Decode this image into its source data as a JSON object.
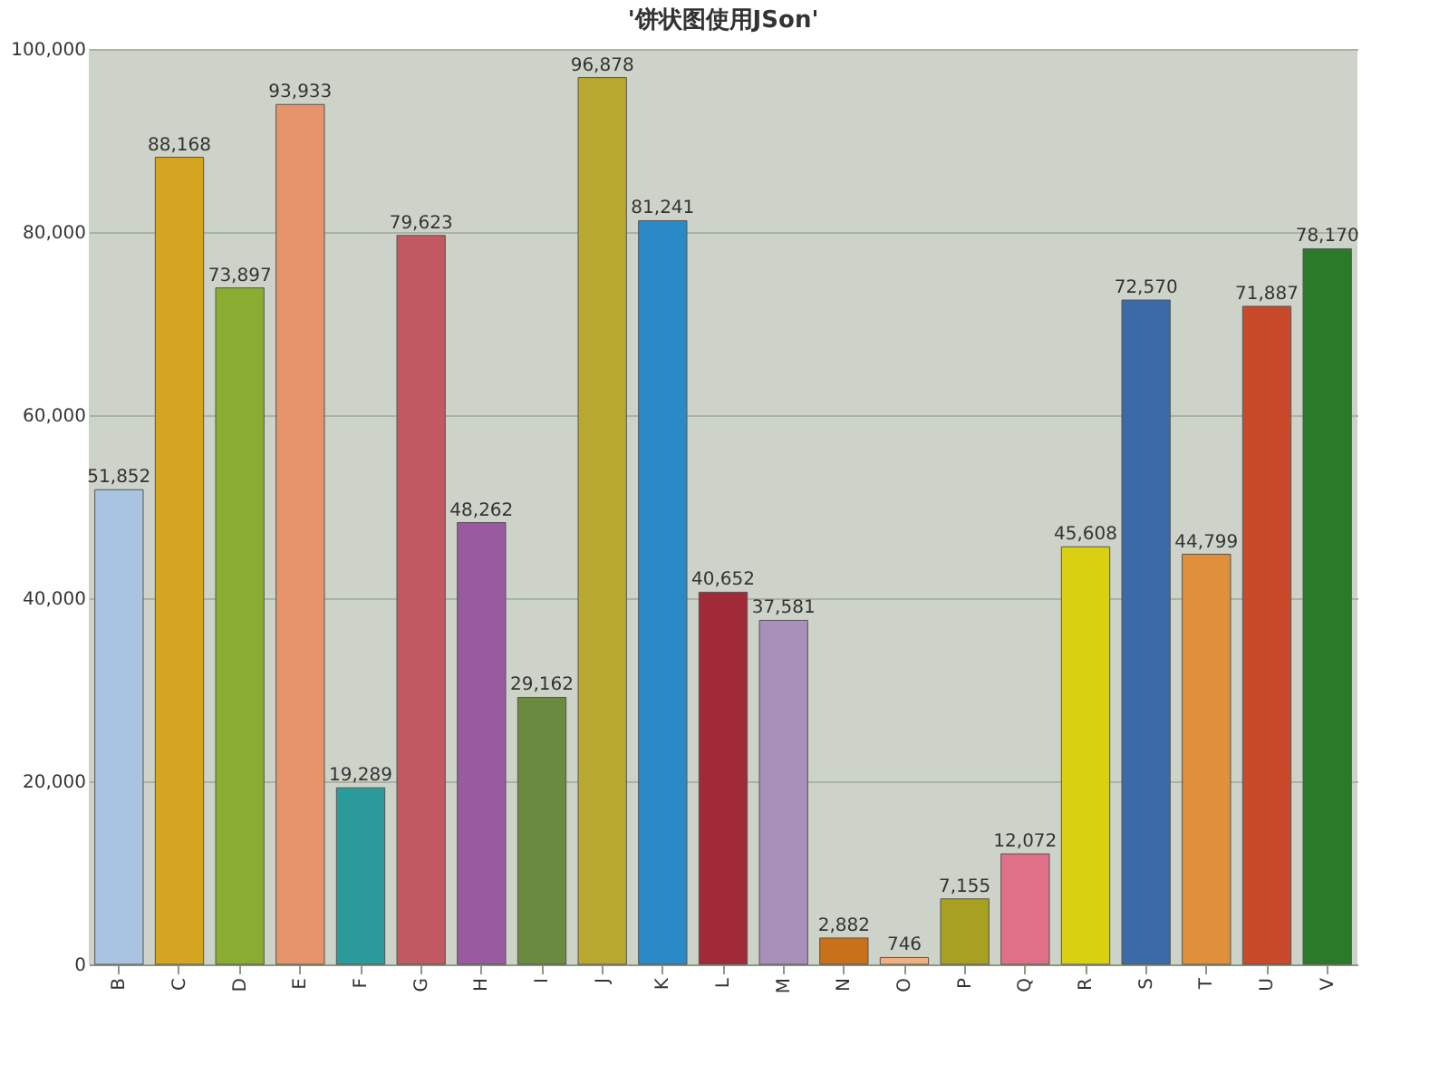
{
  "chart_data": {
    "type": "bar",
    "title": "'饼状图使用JSon'",
    "categories": [
      "B",
      "C",
      "D",
      "E",
      "F",
      "G",
      "H",
      "I",
      "J",
      "K",
      "L",
      "M",
      "N",
      "O",
      "P",
      "Q",
      "R",
      "S",
      "T",
      "U",
      "V"
    ],
    "values": [
      51852,
      88168,
      73897,
      93933,
      19289,
      79623,
      48262,
      29162,
      96878,
      81241,
      40652,
      37581,
      2882,
      746,
      7155,
      12072,
      45608,
      72570,
      44799,
      71887,
      78170
    ],
    "value_labels": [
      "51,852",
      "88,168",
      "73,897",
      "93,933",
      "19,289",
      "79,623",
      "48,262",
      "29,162",
      "96,878",
      "81,241",
      "40,652",
      "37,581",
      "2,882",
      "746",
      "7,155",
      "12,072",
      "45,608",
      "72,570",
      "44,799",
      "71,887",
      "78,170"
    ],
    "colors": [
      "#a9c4e0",
      "#d4a520",
      "#8aac30",
      "#e8946a",
      "#2a9a9a",
      "#c05a60",
      "#9a5aa0",
      "#6a8a40",
      "#b8a830",
      "#2a8ac8",
      "#a02a38",
      "#a890b8",
      "#c8701a",
      "#f0b080",
      "#a8a020",
      "#e07088",
      "#d8d010",
      "#3a6aa8",
      "#e0903a",
      "#c84a2a",
      "#2a7a2a"
    ],
    "ylim": [
      0,
      100000
    ],
    "yticks": [
      0,
      {
        "value": 20000,
        "label": "20,000"
      },
      {
        "value": 40000,
        "label": "40,000"
      },
      {
        "value": 60000,
        "label": "60,000"
      },
      {
        "value": 80000,
        "label": "80,000"
      },
      {
        "value": 100000,
        "label": "100,000"
      }
    ],
    "grid": "y",
    "legend": false
  }
}
